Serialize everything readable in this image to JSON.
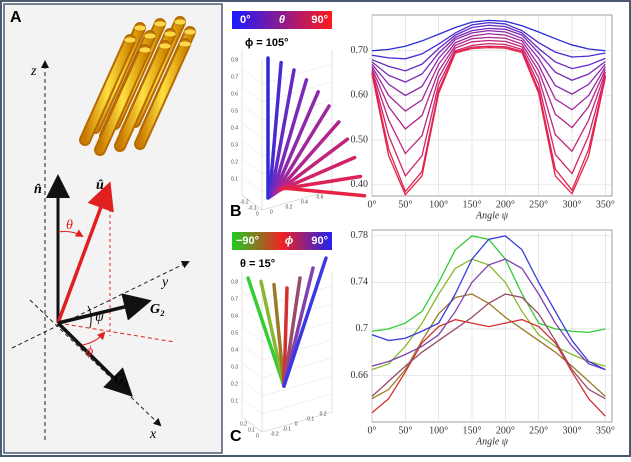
{
  "panels": {
    "a": "A",
    "b": "B",
    "c": "C"
  },
  "diagram": {
    "z": "z",
    "n": "n̂",
    "u": "û",
    "theta": "θ",
    "y": "y",
    "psi": "ψ",
    "g2": "G₂",
    "phi": "ϕ",
    "g1": "G₁",
    "x": "x"
  },
  "colorbar_b": {
    "low": "0°",
    "symbol": "θ",
    "high": "90°",
    "fixed": "ϕ = 105°"
  },
  "colorbar_c": {
    "low": "−90°",
    "symbol": "ϕ",
    "high": "90°",
    "fixed": "θ = 15°"
  },
  "plot3d_b": {
    "vertical": [
      "0.8",
      "0.7",
      "0.6",
      "0.5",
      "0.4",
      "0.3",
      "0.2",
      "0.1"
    ],
    "left": [
      "-0.2",
      "-0.1",
      "0"
    ],
    "right": [
      "0",
      "0.2",
      "0.4",
      "0.6"
    ]
  },
  "plot3d_c": {
    "vertical": [
      "0.8",
      "0.7",
      "0.6",
      "0.5",
      "0.4",
      "0.3",
      "0.2",
      "0.1"
    ],
    "left": [
      "0.2",
      "0.1",
      "0"
    ],
    "right": [
      "-0.2",
      "-0.1",
      "0",
      "0.1",
      "0.2"
    ]
  },
  "chart_data": [
    {
      "type": "line",
      "x_label": "Angle ψ",
      "x": [
        0,
        25,
        50,
        75,
        100,
        125,
        150,
        175,
        200,
        225,
        250,
        275,
        300,
        325,
        350
      ],
      "xlim": [
        0,
        360
      ],
      "xticks": [
        {
          "value": 0,
          "label": "0°"
        },
        {
          "value": 50,
          "label": "50°"
        },
        {
          "value": 100,
          "label": "100°"
        },
        {
          "value": 150,
          "label": "150°"
        },
        {
          "value": 200,
          "label": "200°"
        },
        {
          "value": 250,
          "label": "250°"
        },
        {
          "value": 300,
          "label": "300°"
        },
        {
          "value": 350,
          "label": "350°"
        }
      ],
      "ylim": [
        0.375,
        0.78
      ],
      "yticks": [
        {
          "value": 0.4,
          "label": "0.40"
        },
        {
          "value": 0.5,
          "label": "0.50"
        },
        {
          "value": 0.6,
          "label": "0.60"
        },
        {
          "value": 0.7,
          "label": "0.70"
        }
      ],
      "grid": true,
      "series": [
        {
          "color": "#2b2bd9",
          "values": [
            0.7,
            0.703,
            0.71,
            0.722,
            0.737,
            0.752,
            0.764,
            0.768,
            0.766,
            0.756,
            0.742,
            0.727,
            0.713,
            0.704,
            0.7
          ]
        },
        {
          "color": "#4a2ad0",
          "values": [
            0.69,
            0.684,
            0.682,
            0.693,
            0.715,
            0.74,
            0.758,
            0.763,
            0.76,
            0.745,
            0.718,
            0.697,
            0.686,
            0.688,
            0.695
          ]
        },
        {
          "color": "#642ac4",
          "values": [
            0.68,
            0.665,
            0.655,
            0.67,
            0.705,
            0.735,
            0.752,
            0.757,
            0.754,
            0.74,
            0.705,
            0.675,
            0.66,
            0.668,
            0.683
          ]
        },
        {
          "color": "#7a29b8",
          "values": [
            0.675,
            0.645,
            0.63,
            0.648,
            0.695,
            0.73,
            0.745,
            0.75,
            0.748,
            0.735,
            0.695,
            0.652,
            0.634,
            0.648,
            0.676
          ]
        },
        {
          "color": "#8e28aa",
          "values": [
            0.67,
            0.625,
            0.6,
            0.62,
            0.683,
            0.725,
            0.74,
            0.745,
            0.742,
            0.728,
            0.683,
            0.622,
            0.603,
            0.625,
            0.67
          ]
        },
        {
          "color": "#a0279c",
          "values": [
            0.665,
            0.6,
            0.565,
            0.59,
            0.67,
            0.718,
            0.733,
            0.738,
            0.735,
            0.722,
            0.668,
            0.592,
            0.568,
            0.6,
            0.664
          ]
        },
        {
          "color": "#b0268c",
          "values": [
            0.66,
            0.575,
            0.525,
            0.555,
            0.655,
            0.712,
            0.727,
            0.73,
            0.728,
            0.715,
            0.655,
            0.558,
            0.528,
            0.575,
            0.658
          ]
        },
        {
          "color": "#c0257c",
          "values": [
            0.655,
            0.545,
            0.47,
            0.51,
            0.64,
            0.706,
            0.72,
            0.723,
            0.721,
            0.709,
            0.64,
            0.512,
            0.475,
            0.545,
            0.652
          ]
        },
        {
          "color": "#cf246b",
          "values": [
            0.652,
            0.51,
            0.42,
            0.465,
            0.625,
            0.7,
            0.712,
            0.716,
            0.714,
            0.703,
            0.625,
            0.468,
            0.425,
            0.51,
            0.646
          ]
        },
        {
          "color": "#dc2358",
          "values": [
            0.65,
            0.48,
            0.385,
            0.43,
            0.612,
            0.697,
            0.708,
            0.71,
            0.709,
            0.699,
            0.612,
            0.435,
            0.388,
            0.48,
            0.642
          ]
        },
        {
          "color": "#e82244",
          "values": [
            0.648,
            0.465,
            0.378,
            0.42,
            0.605,
            0.695,
            0.705,
            0.707,
            0.706,
            0.696,
            0.605,
            0.42,
            0.38,
            0.465,
            0.64
          ]
        }
      ]
    },
    {
      "type": "line",
      "x_label": "Angle ψ",
      "x": [
        0,
        25,
        50,
        75,
        100,
        125,
        150,
        175,
        200,
        225,
        250,
        275,
        300,
        325,
        350
      ],
      "xlim": [
        0,
        360
      ],
      "xticks": [
        {
          "value": 0,
          "label": "0°"
        },
        {
          "value": 50,
          "label": "50°"
        },
        {
          "value": 100,
          "label": "100°"
        },
        {
          "value": 150,
          "label": "150°"
        },
        {
          "value": 200,
          "label": "200°"
        },
        {
          "value": 250,
          "label": "250°"
        },
        {
          "value": 300,
          "label": "300°"
        },
        {
          "value": 350,
          "label": "350°"
        }
      ],
      "ylim": [
        0.62,
        0.785
      ],
      "yticks": [
        0.66,
        0.7,
        0.74,
        0.78
      ],
      "grid": true,
      "series": [
        {
          "color": "#33cc33",
          "values": [
            0.698,
            0.7,
            0.705,
            0.715,
            0.74,
            0.768,
            0.78,
            0.777,
            0.76,
            0.73,
            0.705,
            0.7,
            0.698,
            0.697,
            0.7
          ]
        },
        {
          "color": "#88b830",
          "values": [
            0.665,
            0.67,
            0.685,
            0.705,
            0.73,
            0.752,
            0.76,
            0.755,
            0.74,
            0.715,
            0.695,
            0.685,
            0.678,
            0.672,
            0.668
          ]
        },
        {
          "color": "#9a7a2a",
          "values": [
            0.64,
            0.648,
            0.665,
            0.69,
            0.713,
            0.727,
            0.73,
            0.722,
            0.71,
            0.7,
            0.69,
            0.68,
            0.668,
            0.655,
            0.642
          ]
        },
        {
          "color": "#d43030",
          "values": [
            0.628,
            0.64,
            0.663,
            0.688,
            0.702,
            0.708,
            0.705,
            0.702,
            0.705,
            0.708,
            0.702,
            0.688,
            0.663,
            0.64,
            0.625
          ]
        },
        {
          "color": "#9a4a6a",
          "values": [
            0.642,
            0.655,
            0.668,
            0.68,
            0.69,
            0.7,
            0.71,
            0.722,
            0.73,
            0.727,
            0.713,
            0.69,
            0.665,
            0.648,
            0.64
          ]
        },
        {
          "color": "#8040b0",
          "values": [
            0.668,
            0.672,
            0.678,
            0.685,
            0.695,
            0.715,
            0.74,
            0.755,
            0.76,
            0.752,
            0.73,
            0.705,
            0.685,
            0.67,
            0.665
          ]
        },
        {
          "color": "#3a3ae0",
          "values": [
            0.695,
            0.69,
            0.692,
            0.698,
            0.705,
            0.73,
            0.76,
            0.777,
            0.78,
            0.768,
            0.74,
            0.715,
            0.69,
            0.672,
            0.665
          ]
        }
      ]
    }
  ]
}
